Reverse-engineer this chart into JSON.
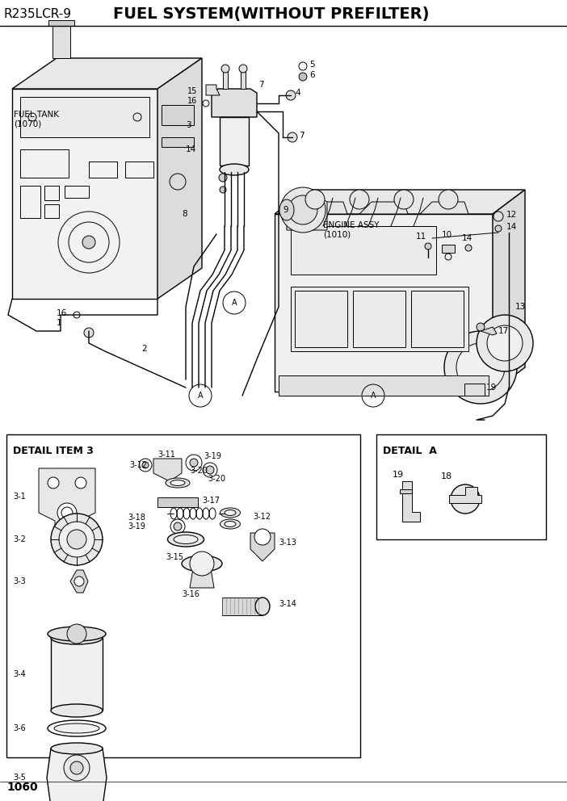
{
  "title_left": "R235LCR-9",
  "title_center": "FUEL SYSTEM(WITHOUT PREFILTER)",
  "page_number": "1060",
  "bg_color": "#ffffff",
  "line_color": "#000000",
  "detail_box1_title": "DETAIL ITEM 3",
  "detail_box2_title": "DETAIL  A",
  "fuel_tank_label": "FUEL TANK\n(1070)",
  "engine_label": "ENGINE ASSY\n(1010)"
}
